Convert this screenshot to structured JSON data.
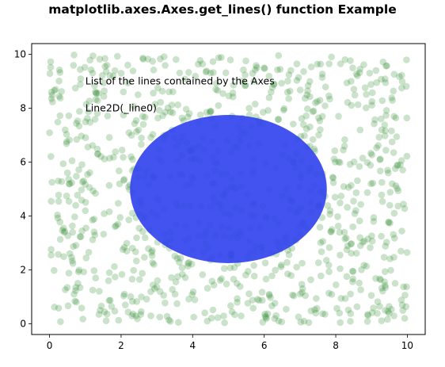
{
  "chart_data": {
    "type": "scatter",
    "title": "matplotlib.axes.Axes.get_lines() function Example",
    "xlabel": "",
    "ylabel": "",
    "xlim": [
      -0.5,
      10.5
    ],
    "ylim": [
      -0.4,
      10.4
    ],
    "x_ticks": [
      "0",
      "2",
      "4",
      "6",
      "8",
      "10"
    ],
    "y_ticks": [
      "0",
      "2",
      "4",
      "6",
      "8",
      "10"
    ],
    "grid": false,
    "scatter": {
      "count": 1000,
      "x_range": [
        0,
        10
      ],
      "y_range": [
        0,
        10
      ],
      "color": "#2e8b2e",
      "alpha": 0.25
    },
    "ellipse": {
      "center": [
        5,
        5
      ],
      "width": 5.5,
      "height": 5.5,
      "color": "#3344ee"
    },
    "annotations": [
      {
        "text": "List of the lines contained by the Axes",
        "x": 1,
        "y": 9
      },
      {
        "text": "Line2D(_line0)",
        "x": 1,
        "y": 8
      }
    ]
  }
}
